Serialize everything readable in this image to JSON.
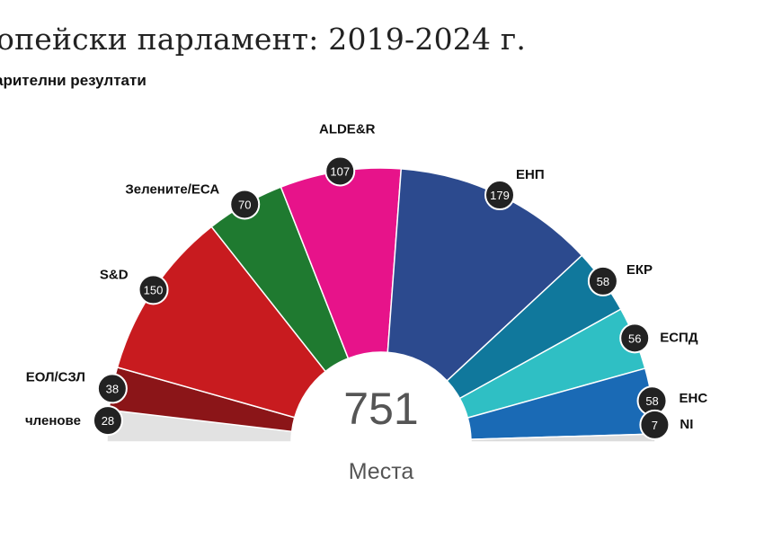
{
  "header": {
    "title": "опейски парламент: 2019-2024 г.",
    "subtitle": "арителни резултати"
  },
  "colors": {
    "background": "#ffffff",
    "badge": "#222222"
  },
  "chart_data": {
    "type": "pie",
    "subtype": "parliament-hemicycle",
    "total": "751",
    "total_label": "Места",
    "series": [
      {
        "name": "членове",
        "values": [
          28
        ],
        "color": "#e2e2e2"
      },
      {
        "name": "ЕОЛ/СЗЛ",
        "values": [
          38
        ],
        "color": "#8b1518"
      },
      {
        "name": "S&D",
        "values": [
          150
        ],
        "color": "#c81b1f"
      },
      {
        "name": "Зелените/ЕСА",
        "values": [
          70
        ],
        "color": "#1f7a30"
      },
      {
        "name": "ALDE&R",
        "values": [
          107
        ],
        "color": "#e7138a"
      },
      {
        "name": "ЕНП",
        "values": [
          179
        ],
        "color": "#2c4a8e"
      },
      {
        "name": "ЕКР",
        "values": [
          58
        ],
        "color": "#10789c"
      },
      {
        "name": "ЕСПД",
        "values": [
          56
        ],
        "color": "#2fbfc4"
      },
      {
        "name": "ЕНС",
        "values": [
          58
        ],
        "color": "#1a6ab5"
      },
      {
        "name": "NI",
        "values": [
          7
        ],
        "color": "#dcdcdc"
      }
    ]
  }
}
